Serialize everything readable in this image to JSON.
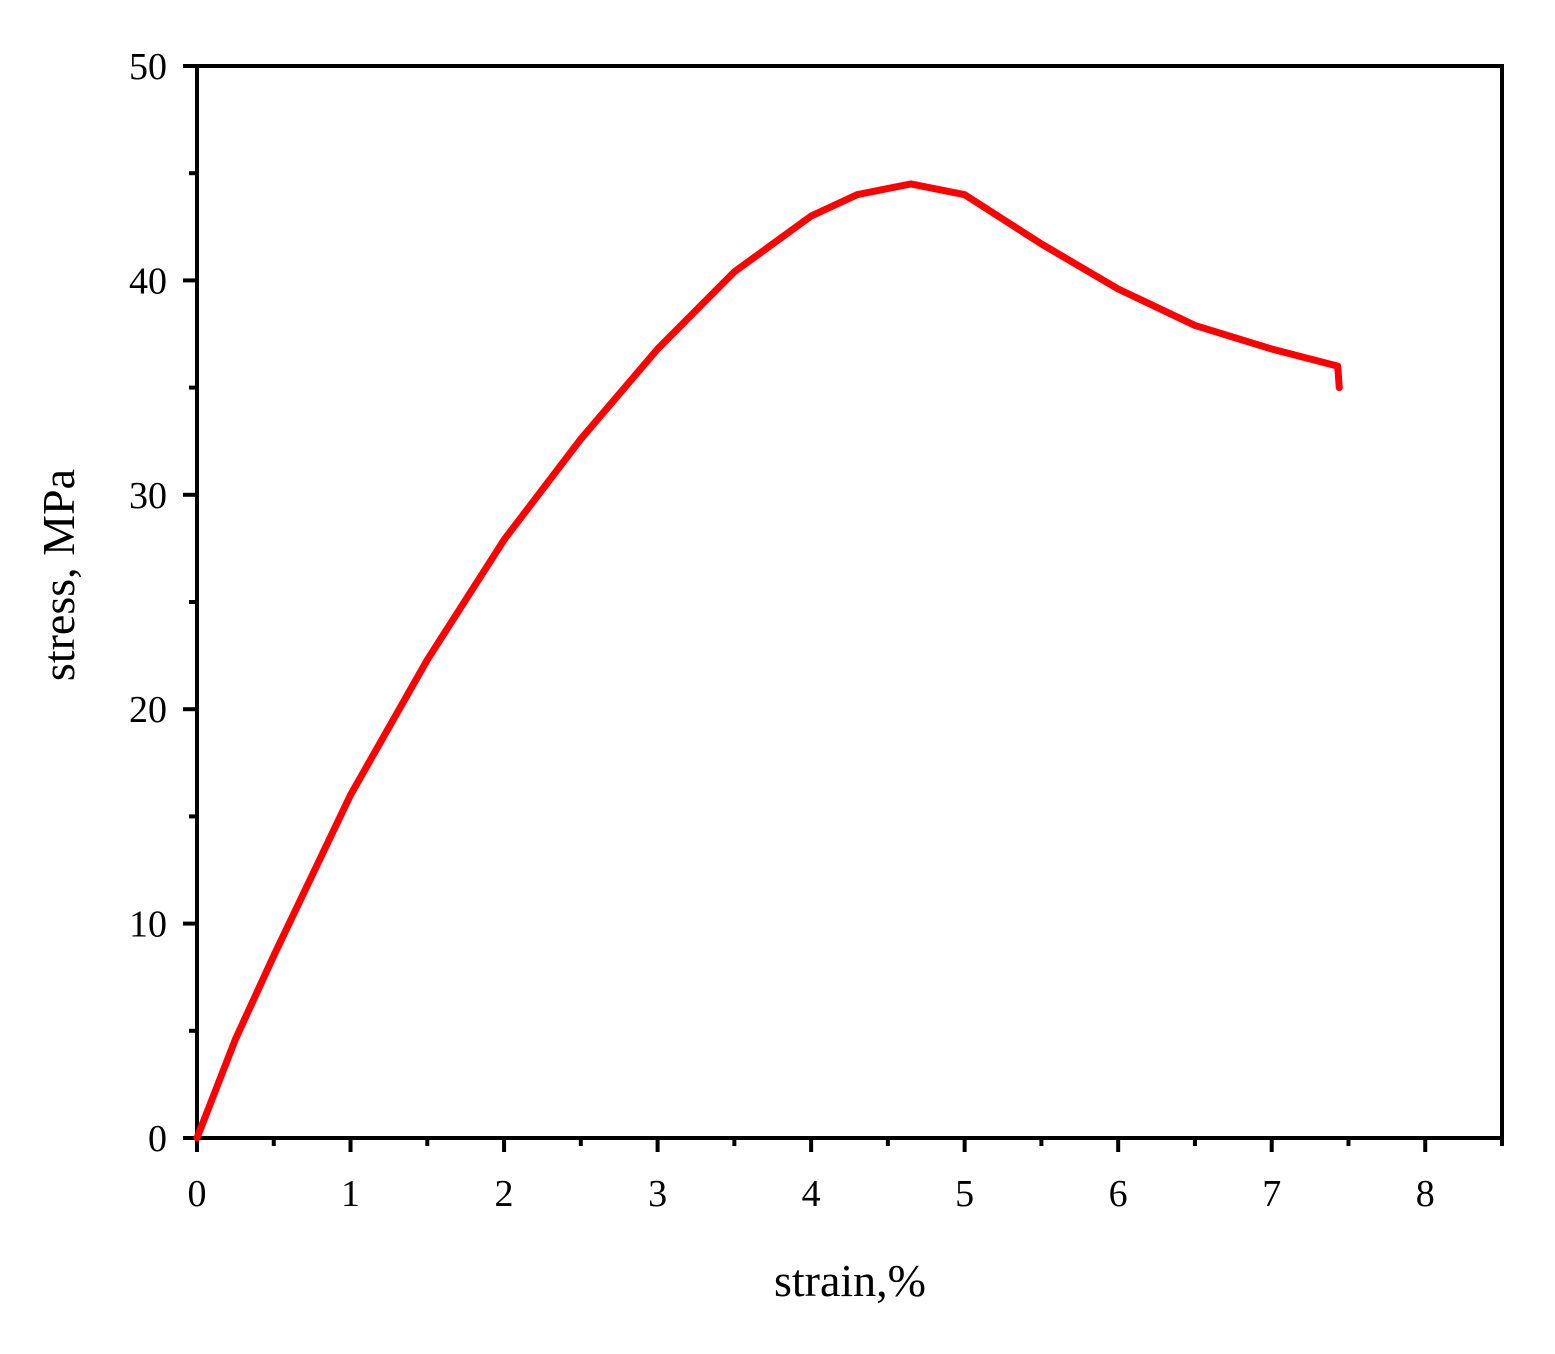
{
  "chart_data": {
    "type": "line",
    "x_label": "strain,%",
    "y_label": "stress, MPa",
    "x": [
      0,
      0.25,
      0.5,
      1.0,
      1.5,
      2.0,
      2.5,
      3.0,
      3.5,
      4.0,
      4.3,
      4.65,
      5.0,
      5.5,
      6.0,
      6.5,
      7.0,
      7.43,
      7.44
    ],
    "values": [
      0,
      4.6,
      8.5,
      16.0,
      22.3,
      27.9,
      32.6,
      36.8,
      40.4,
      43.0,
      44.0,
      44.5,
      44.0,
      41.7,
      39.6,
      37.9,
      36.8,
      36.0,
      35.0
    ],
    "color": "#ff0000",
    "xlim": [
      0,
      8.5
    ],
    "ylim": [
      0,
      50
    ],
    "xticks": [
      0,
      1,
      2,
      3,
      4,
      5,
      6,
      7,
      8
    ],
    "yticks": [
      0,
      10,
      20,
      30,
      40,
      50
    ],
    "minor_xticks": [
      0.5,
      1.5,
      2.5,
      3.5,
      4.5,
      5.5,
      6.5,
      7.5,
      8.5
    ],
    "minor_yticks": [
      5,
      15,
      25,
      35,
      45
    ]
  }
}
